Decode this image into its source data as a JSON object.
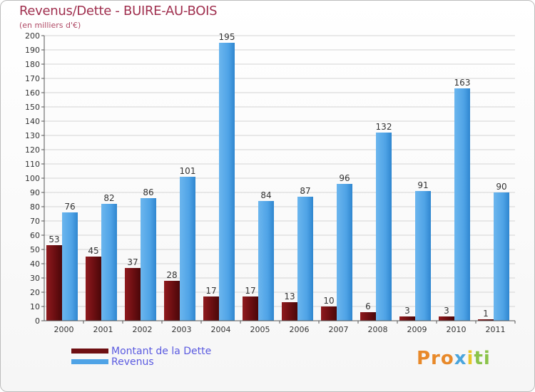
{
  "title": "Revenus/Dette - BUIRE-AU-BOIS",
  "subtitle": "(en milliers d'€)",
  "logo": {
    "text": "Proxiti",
    "p1": "Pro",
    "p2": "x",
    "p3": "i",
    "p4": "ti"
  },
  "colors": {
    "dette": "#6e0f12",
    "revenus": "#4fa3e6",
    "title": "#a0304f",
    "legend_text": "#5a5ae0"
  },
  "legend": [
    {
      "label": "Montant de la Dette",
      "color": "#6e0f12"
    },
    {
      "label": "Revenus",
      "color": "#4fa3e6"
    }
  ],
  "chart_data": {
    "type": "bar",
    "title": "Revenus/Dette - BUIRE-AU-BOIS",
    "ylabel": "",
    "xlabel": "",
    "ylim": [
      0,
      200
    ],
    "ytick_step": 10,
    "grid": true,
    "legend_position": "bottom-left",
    "categories": [
      "2000",
      "2001",
      "2002",
      "2003",
      "2004",
      "2005",
      "2006",
      "2007",
      "2008",
      "2009",
      "2010",
      "2011"
    ],
    "series": [
      {
        "name": "Montant de la Dette",
        "color": "#6e0f12",
        "values": [
          53,
          45,
          37,
          28,
          17,
          17,
          13,
          10,
          6,
          3,
          3,
          1
        ]
      },
      {
        "name": "Revenus",
        "color": "#4fa3e6",
        "values": [
          76,
          82,
          86,
          101,
          195,
          84,
          87,
          96,
          132,
          91,
          163,
          90
        ]
      }
    ]
  }
}
